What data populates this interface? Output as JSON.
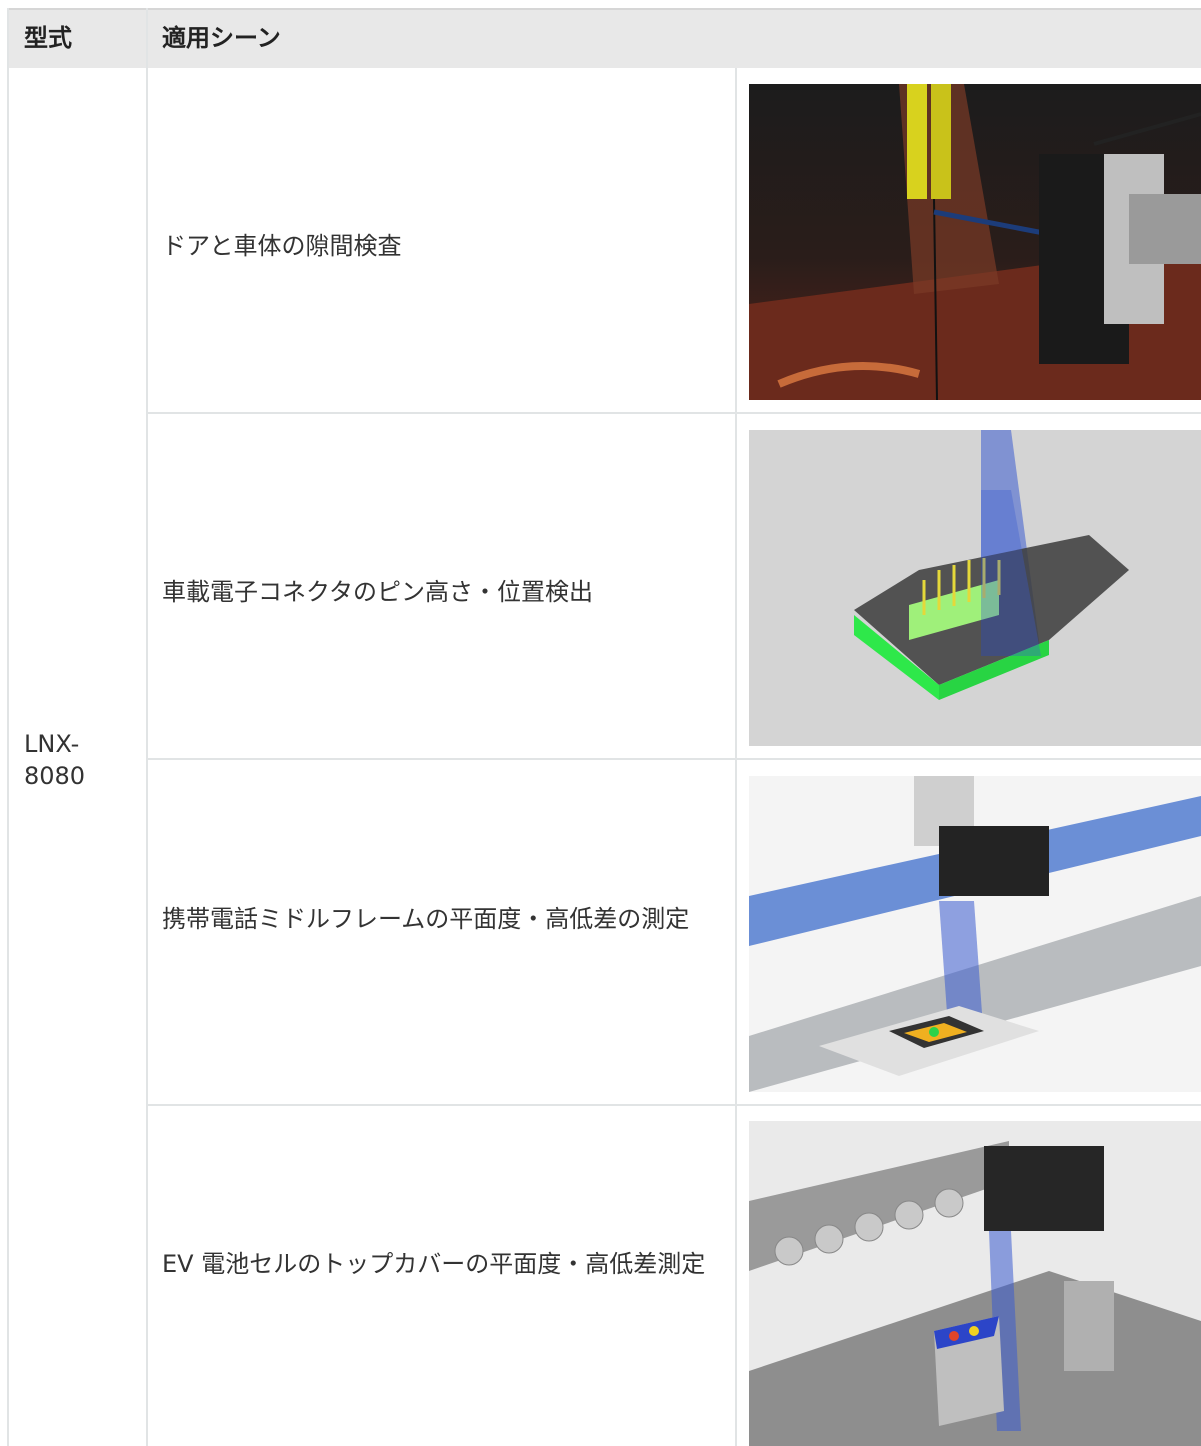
{
  "table": {
    "header": [
      "型式",
      "適用シーン"
    ],
    "model": "LNX-8080",
    "rows": [
      "ドアと車体の隙間検査",
      "車載電子コネクタのピン高さ・位置検出",
      "携帯電話ミドルフレームの平面度・高低差の測定",
      "EV 電池セルのトップカバーの平面度・高低差測定"
    ]
  }
}
